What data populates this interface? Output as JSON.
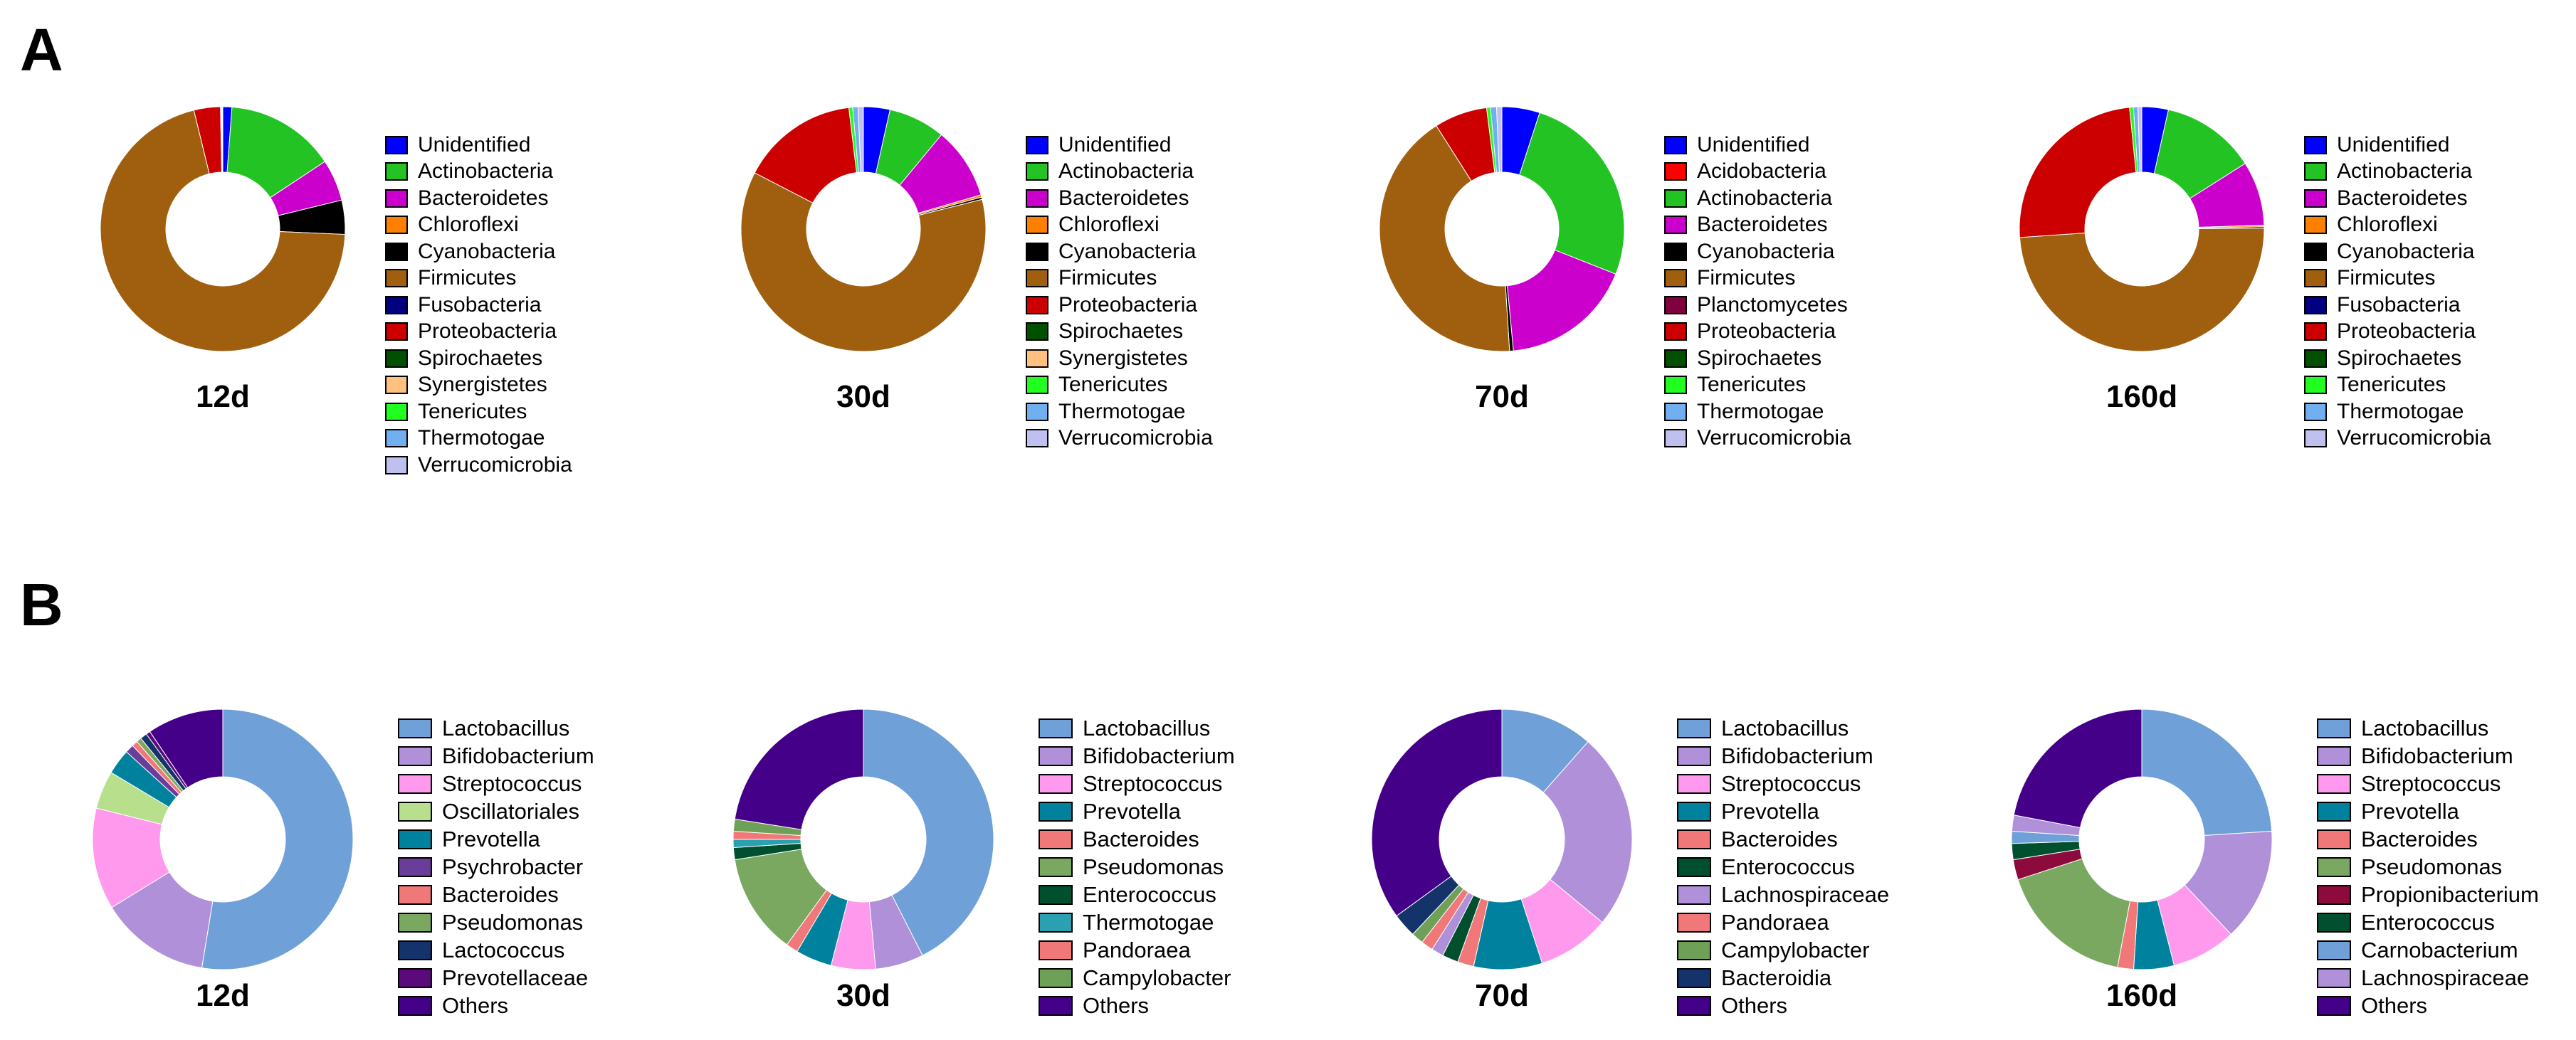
{
  "panels": [
    {
      "letter": "A"
    },
    {
      "letter": "B"
    }
  ],
  "chart_data": [
    {
      "type": "pie",
      "panel": "A",
      "title": "12d",
      "categories": [
        "Unidentified",
        "Actinobacteria",
        "Bacteroidetes",
        "Chloroflexi",
        "Cyanobacteria",
        "Firmicutes",
        "Fusobacteria",
        "Proteobacteria",
        "Spirochaetes",
        "Synergistetes",
        "Tenericutes",
        "Thermotogae",
        "Verrucomicrobia"
      ],
      "colors": [
        "#0000ff",
        "#22c322",
        "#cc00cc",
        "#ff8000",
        "#000000",
        "#9f5f0f",
        "#000080",
        "#cc0000",
        "#005000",
        "#ffc080",
        "#20ff20",
        "#70b0f0",
        "#c0c0f0"
      ],
      "values": [
        1.2,
        14.5,
        5.5,
        0,
        4.5,
        70.5,
        0,
        3.5,
        0,
        0,
        0.1,
        0.1,
        0.1
      ]
    },
    {
      "type": "pie",
      "panel": "A",
      "title": "30d",
      "categories": [
        "Unidentified",
        "Actinobacteria",
        "Bacteroidetes",
        "Chloroflexi",
        "Cyanobacteria",
        "Firmicutes",
        "Proteobacteria",
        "Spirochaetes",
        "Synergistetes",
        "Tenericutes",
        "Thermotogae",
        "Verrucomicrobia"
      ],
      "colors": [
        "#0000ff",
        "#22c322",
        "#cc00cc",
        "#ff8000",
        "#000000",
        "#9f5f0f",
        "#cc0000",
        "#005000",
        "#ffc080",
        "#20ff20",
        "#70b0f0",
        "#c0c0f0"
      ],
      "values": [
        3.5,
        7.5,
        9.5,
        0.3,
        0.3,
        61.5,
        15.5,
        0,
        0,
        0.5,
        0.7,
        0.7
      ]
    },
    {
      "type": "pie",
      "panel": "A",
      "title": "70d",
      "categories": [
        "Unidentified",
        "Acidobacteria",
        "Actinobacteria",
        "Bacteroidetes",
        "Cyanobacteria",
        "Firmicutes",
        "Planctomycetes",
        "Proteobacteria",
        "Spirochaetes",
        "Tenericutes",
        "Thermotogae",
        "Verrucomicrobia"
      ],
      "colors": [
        "#0000ff",
        "#ff0000",
        "#22c322",
        "#cc00cc",
        "#000000",
        "#9f5f0f",
        "#800040",
        "#cc0000",
        "#005000",
        "#20ff20",
        "#70b0f0",
        "#c0c0f0"
      ],
      "values": [
        5,
        0,
        26,
        17.5,
        0.5,
        42,
        0,
        7,
        0,
        0.5,
        0.8,
        0.7
      ]
    },
    {
      "type": "pie",
      "panel": "A",
      "title": "160d",
      "categories": [
        "Unidentified",
        "Actinobacteria",
        "Bacteroidetes",
        "Chloroflexi",
        "Cyanobacteria",
        "Firmicutes",
        "Fusobacteria",
        "Proteobacteria",
        "Spirochaetes",
        "Tenericutes",
        "Thermotogae",
        "Verrucomicrobia"
      ],
      "colors": [
        "#0000ff",
        "#22c322",
        "#cc00cc",
        "#ff8000",
        "#000000",
        "#9f5f0f",
        "#000080",
        "#cc0000",
        "#005000",
        "#20ff20",
        "#70b0f0",
        "#c0c0f0"
      ],
      "values": [
        3.5,
        12.5,
        8.5,
        0.2,
        0.2,
        49,
        0,
        24.5,
        0,
        0.5,
        0.6,
        0.5
      ]
    },
    {
      "type": "pie",
      "panel": "B",
      "title": "12d",
      "categories": [
        "Lactobacillus",
        "Bifidobacterium",
        "Streptococcus",
        "Oscillatoriales",
        "Prevotella",
        "Psychrobacter",
        "Bacteroides",
        "Pseudomonas",
        "Lactococcus",
        "Prevotellaceae",
        "Others"
      ],
      "colors": [
        "#6fa0d8",
        "#b090d8",
        "#ff99ee",
        "#b8e08c",
        "#00829e",
        "#6a3d9a",
        "#f07878",
        "#7aa860",
        "#14336b",
        "#5a0a7a",
        "#440088"
      ],
      "values": [
        50,
        13,
        12,
        4.5,
        3,
        1,
        0.7,
        0.6,
        0.8,
        0.5,
        9
      ]
    },
    {
      "type": "pie",
      "panel": "B",
      "title": "30d",
      "categories": [
        "Lactobacillus",
        "Bifidobacterium",
        "Streptococcus",
        "Prevotella",
        "Bacteroides",
        "Pseudomonas",
        "Enterococcus",
        "Thermotogae",
        "Pandoraea",
        "Campylobacter",
        "Others"
      ],
      "colors": [
        "#6fa0d8",
        "#b090d8",
        "#ff99ee",
        "#00829e",
        "#f07878",
        "#7aa860",
        "#005030",
        "#2aa0b0",
        "#f07878",
        "#6ea058",
        "#440088"
      ],
      "values": [
        42.5,
        6,
        5.5,
        4.5,
        1.5,
        12.5,
        1.5,
        1,
        1,
        1.5,
        22.5
      ]
    },
    {
      "type": "pie",
      "panel": "B",
      "title": "70d",
      "categories": [
        "Lactobacillus",
        "Bifidobacterium",
        "Streptococcus",
        "Prevotella",
        "Bacteroides",
        "Enterococcus",
        "Lachnospiraceae",
        "Pandoraea",
        "Campylobacter",
        "Bacteroidia",
        "Others"
      ],
      "colors": [
        "#6fa0d8",
        "#b090d8",
        "#ff99ee",
        "#00829e",
        "#f07878",
        "#005030",
        "#b090d8",
        "#f07878",
        "#6ea058",
        "#14336b",
        "#440088"
      ],
      "values": [
        11.5,
        24.5,
        9,
        8.5,
        2,
        2,
        1.5,
        1.5,
        1.5,
        3,
        35
      ]
    },
    {
      "type": "pie",
      "panel": "B",
      "title": "160d",
      "categories": [
        "Lactobacillus",
        "Bifidobacterium",
        "Streptococcus",
        "Prevotella",
        "Bacteroides",
        "Pseudomonas",
        "Propionibacterium",
        "Enterococcus",
        "Carnobacterium",
        "Lachnospiraceae",
        "Others"
      ],
      "colors": [
        "#6fa0d8",
        "#b090d8",
        "#ff99ee",
        "#00829e",
        "#f07878",
        "#7aa860",
        "#8c0a3c",
        "#005030",
        "#6fa0d8",
        "#b090d8",
        "#440088"
      ],
      "values": [
        24,
        14,
        8,
        5,
        2,
        17,
        2.5,
        2,
        1.5,
        2,
        22
      ]
    }
  ]
}
